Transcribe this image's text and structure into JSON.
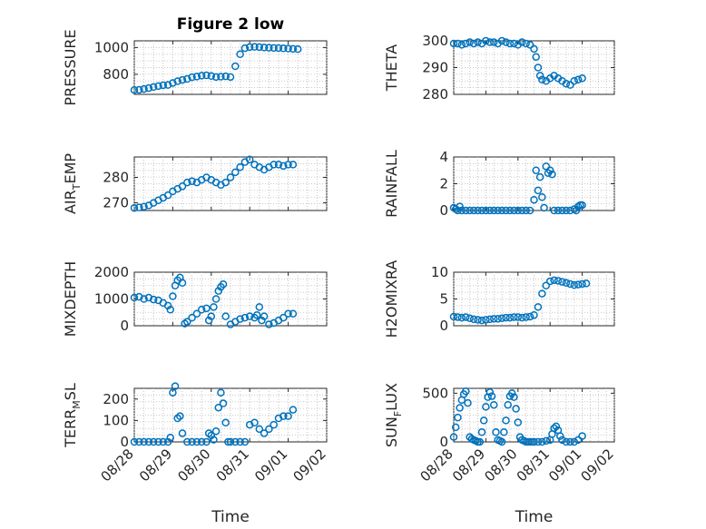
{
  "chart_data": [
    {
      "type": "scatter",
      "title": "Figure 2 low",
      "ylabel": "PRESSURE",
      "ylabel_sub": "",
      "ylabel_rest": "",
      "xlim": [
        0,
        4
      ],
      "ylim": [
        650,
        1050
      ],
      "yticks": [
        800,
        1000
      ],
      "grid": true,
      "x": [
        0.0,
        0.1,
        0.2,
        0.3,
        0.4,
        0.5,
        0.6,
        0.7,
        0.8,
        0.9,
        1.0,
        1.1,
        1.2,
        1.3,
        1.4,
        1.5,
        1.6,
        1.7,
        1.8,
        1.9,
        2.0,
        2.1,
        2.2,
        2.3,
        2.4,
        2.5,
        2.6,
        2.7,
        2.8,
        2.9,
        3.0,
        3.1,
        3.2,
        3.3,
        3.4
      ],
      "y": [
        682,
        684,
        690,
        697,
        705,
        712,
        718,
        720,
        735,
        748,
        758,
        765,
        778,
        783,
        790,
        792,
        787,
        780,
        782,
        785,
        780,
        860,
        950,
        995,
        1003,
        1005,
        1003,
        1000,
        998,
        997,
        996,
        994,
        992,
        990,
        988
      ]
    },
    {
      "type": "scatter",
      "ylabel": "THETA",
      "ylabel_sub": "",
      "ylabel_rest": "",
      "xlim": [
        0,
        4
      ],
      "ylim": [
        280,
        300
      ],
      "yticks": [
        280,
        290,
        300
      ],
      "grid": true,
      "x": [
        0.0,
        0.1,
        0.2,
        0.3,
        0.4,
        0.5,
        0.6,
        0.7,
        0.8,
        0.9,
        1.0,
        1.1,
        1.2,
        1.3,
        1.4,
        1.5,
        1.6,
        1.7,
        1.8,
        1.9,
        2.0,
        2.05,
        2.1,
        2.15,
        2.2,
        2.3,
        2.4,
        2.5,
        2.6,
        2.7,
        2.8,
        2.9,
        3.0,
        3.1,
        3.2
      ],
      "y": [
        299,
        299,
        298.5,
        299,
        299.5,
        299,
        299.5,
        299,
        300,
        299.5,
        299.5,
        299,
        300,
        299.5,
        299,
        299,
        298.5,
        299.5,
        299,
        298.5,
        297,
        294,
        290,
        287,
        285.5,
        285,
        286,
        287,
        286,
        285,
        284,
        283.5,
        285,
        285.5,
        286
      ]
    },
    {
      "type": "scatter",
      "ylabel": "AIR",
      "ylabel_sub": "T",
      "ylabel_rest": "EMP",
      "xlim": [
        0,
        4
      ],
      "ylim": [
        267,
        288
      ],
      "yticks": [
        270,
        280
      ],
      "grid": true,
      "x": [
        0.0,
        0.1,
        0.2,
        0.3,
        0.4,
        0.5,
        0.6,
        0.7,
        0.8,
        0.9,
        1.0,
        1.1,
        1.2,
        1.3,
        1.4,
        1.5,
        1.6,
        1.7,
        1.8,
        1.9,
        2.0,
        2.1,
        2.2,
        2.3,
        2.4,
        2.5,
        2.6,
        2.7,
        2.8,
        2.9,
        3.0,
        3.1,
        3.2,
        3.3
      ],
      "y": [
        268,
        268.2,
        268.5,
        269,
        270,
        271,
        272,
        273,
        274.5,
        275.5,
        276.5,
        278,
        278.5,
        278,
        279,
        280,
        279,
        278,
        277,
        278,
        280,
        282,
        284,
        286,
        287,
        285,
        284,
        283,
        284,
        285,
        285,
        284.5,
        285,
        285
      ]
    },
    {
      "type": "scatter",
      "ylabel": "RAINFALL",
      "ylabel_sub": "",
      "ylabel_rest": "",
      "xlim": [
        0,
        4
      ],
      "ylim": [
        0,
        4
      ],
      "yticks": [
        0,
        2,
        4
      ],
      "grid": true,
      "x": [
        0.0,
        0.05,
        0.1,
        0.15,
        0.2,
        0.3,
        0.4,
        0.5,
        0.6,
        0.7,
        0.8,
        0.9,
        1.0,
        1.1,
        1.2,
        1.3,
        1.4,
        1.5,
        1.6,
        1.7,
        1.8,
        1.9,
        2.0,
        2.05,
        2.1,
        2.15,
        2.2,
        2.25,
        2.3,
        2.35,
        2.4,
        2.45,
        2.5,
        2.6,
        2.7,
        2.8,
        2.9,
        3.0,
        3.05,
        3.1,
        3.15,
        3.2
      ],
      "y": [
        0.2,
        0.1,
        0,
        0.3,
        0,
        0,
        0,
        0,
        0,
        0,
        0,
        0,
        0,
        0,
        0,
        0,
        0,
        0,
        0,
        0,
        0,
        0,
        0.8,
        3.0,
        1.5,
        2.5,
        1.0,
        0.2,
        3.3,
        2.8,
        3.0,
        2.7,
        0,
        0,
        0,
        0,
        0,
        0.1,
        0,
        0.3,
        0.4,
        0.4
      ]
    },
    {
      "type": "scatter",
      "ylabel": "MIXDEPTH",
      "ylabel_sub": "",
      "ylabel_rest": "",
      "xlim": [
        0,
        4
      ],
      "ylim": [
        0,
        2000
      ],
      "yticks": [
        0,
        1000,
        2000
      ],
      "grid": true,
      "x": [
        0.0,
        0.1,
        0.2,
        0.3,
        0.4,
        0.5,
        0.6,
        0.7,
        0.75,
        0.8,
        0.85,
        0.9,
        0.95,
        1.0,
        1.05,
        1.1,
        1.2,
        1.3,
        1.4,
        1.5,
        1.55,
        1.6,
        1.65,
        1.7,
        1.75,
        1.8,
        1.85,
        1.9,
        2.0,
        2.1,
        2.2,
        2.3,
        2.4,
        2.5,
        2.55,
        2.6,
        2.65,
        2.7,
        2.8,
        2.9,
        3.0,
        3.1,
        3.2,
        3.3
      ],
      "y": [
        1050,
        1080,
        1000,
        1050,
        980,
        950,
        850,
        750,
        600,
        1100,
        1500,
        1700,
        1800,
        1600,
        80,
        150,
        300,
        450,
        600,
        650,
        200,
        350,
        700,
        1000,
        1300,
        1450,
        1550,
        350,
        50,
        150,
        250,
        300,
        350,
        300,
        400,
        700,
        200,
        350,
        50,
        100,
        200,
        300,
        450,
        450
      ]
    },
    {
      "type": "scatter",
      "ylabel": "H2OMIXRA",
      "ylabel_sub": "",
      "ylabel_rest": "",
      "xlim": [
        0,
        4
      ],
      "ylim": [
        0,
        10
      ],
      "yticks": [
        0,
        5,
        10
      ],
      "grid": true,
      "x": [
        0.0,
        0.1,
        0.2,
        0.3,
        0.4,
        0.5,
        0.6,
        0.7,
        0.8,
        0.9,
        1.0,
        1.1,
        1.2,
        1.3,
        1.4,
        1.5,
        1.6,
        1.7,
        1.8,
        1.9,
        2.0,
        2.1,
        2.2,
        2.3,
        2.4,
        2.5,
        2.6,
        2.7,
        2.8,
        2.9,
        3.0,
        3.1,
        3.2,
        3.3
      ],
      "y": [
        1.7,
        1.6,
        1.5,
        1.6,
        1.4,
        1.2,
        1.1,
        1.0,
        1.1,
        1.2,
        1.3,
        1.3,
        1.4,
        1.5,
        1.5,
        1.6,
        1.6,
        1.5,
        1.6,
        1.7,
        2.0,
        3.5,
        6.0,
        7.5,
        8.3,
        8.5,
        8.4,
        8.2,
        8.0,
        7.8,
        7.6,
        7.7,
        7.8,
        7.9
      ]
    },
    {
      "type": "scatter",
      "ylabel": "TERR",
      "ylabel_sub": "M",
      "ylabel_rest": "SL",
      "xlim": [
        0,
        4
      ],
      "ylim": [
        0,
        250
      ],
      "yticks": [
        0,
        100,
        200
      ],
      "grid": true,
      "x": [
        0.0,
        0.1,
        0.2,
        0.3,
        0.4,
        0.5,
        0.6,
        0.7,
        0.75,
        0.8,
        0.85,
        0.9,
        0.95,
        1.0,
        1.1,
        1.2,
        1.3,
        1.4,
        1.5,
        1.55,
        1.6,
        1.65,
        1.7,
        1.75,
        1.8,
        1.85,
        1.9,
        1.95,
        2.0,
        2.1,
        2.2,
        2.3,
        2.4,
        2.5,
        2.6,
        2.7,
        2.8,
        2.9,
        3.0,
        3.1,
        3.2,
        3.3
      ],
      "y": [
        0,
        0,
        0,
        0,
        0,
        0,
        0,
        0,
        20,
        230,
        260,
        110,
        120,
        40,
        0,
        0,
        0,
        0,
        0,
        40,
        30,
        10,
        50,
        160,
        230,
        180,
        90,
        0,
        0,
        0,
        0,
        0,
        80,
        90,
        60,
        40,
        60,
        80,
        110,
        120,
        120,
        150
      ]
    },
    {
      "type": "scatter",
      "ylabel": "SUN",
      "ylabel_sub": "F",
      "ylabel_rest": "LUX",
      "xlim": [
        0,
        4
      ],
      "ylim": [
        0,
        550
      ],
      "yticks": [
        0,
        500
      ],
      "grid": true,
      "x": [
        0.0,
        0.05,
        0.1,
        0.15,
        0.2,
        0.25,
        0.3,
        0.35,
        0.4,
        0.45,
        0.5,
        0.55,
        0.6,
        0.65,
        0.7,
        0.75,
        0.8,
        0.85,
        0.9,
        0.95,
        1.0,
        1.05,
        1.1,
        1.15,
        1.2,
        1.25,
        1.3,
        1.35,
        1.4,
        1.45,
        1.5,
        1.55,
        1.6,
        1.65,
        1.7,
        1.75,
        1.8,
        1.85,
        1.9,
        1.95,
        2.0,
        2.1,
        2.2,
        2.3,
        2.4,
        2.45,
        2.5,
        2.55,
        2.6,
        2.65,
        2.7,
        2.8,
        2.9,
        3.0,
        3.1,
        3.2
      ],
      "y": [
        50,
        150,
        250,
        350,
        430,
        490,
        520,
        400,
        50,
        30,
        20,
        10,
        0,
        0,
        100,
        220,
        360,
        460,
        510,
        470,
        380,
        100,
        20,
        10,
        0,
        100,
        220,
        380,
        470,
        500,
        460,
        340,
        200,
        50,
        20,
        10,
        0,
        0,
        0,
        0,
        0,
        0,
        0,
        10,
        20,
        80,
        140,
        160,
        120,
        60,
        20,
        0,
        0,
        0,
        20,
        60
      ]
    }
  ],
  "xaxis": {
    "tick_labels": [
      "08/28",
      "08/29",
      "08/30",
      "08/31",
      "09/01",
      "09/02"
    ],
    "label": "Time"
  }
}
